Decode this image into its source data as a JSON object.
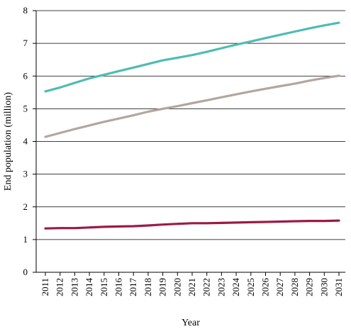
{
  "chart_data": {
    "type": "line",
    "title": "",
    "xlabel": "Year",
    "ylabel": "End population (million)",
    "ylim": [
      0,
      8
    ],
    "yticks": [
      0,
      1,
      2,
      3,
      4,
      5,
      6,
      7,
      8
    ],
    "grid": "horizontal",
    "legend": "none",
    "categories": [
      "2011",
      "2012",
      "2013",
      "2014",
      "2015",
      "2016",
      "2017",
      "2018",
      "2019",
      "2020",
      "2021",
      "2022",
      "2023",
      "2024",
      "2025",
      "2026",
      "2027",
      "2028",
      "2029",
      "2030",
      "2031"
    ],
    "series": [
      {
        "color": "#4dbdb0",
        "values": [
          5.53,
          5.65,
          5.79,
          5.93,
          6.04,
          6.15,
          6.26,
          6.37,
          6.48,
          6.56,
          6.64,
          6.74,
          6.85,
          6.96,
          7.06,
          7.16,
          7.26,
          7.36,
          7.46,
          7.55,
          7.63
        ]
      },
      {
        "color": "#b3a69e",
        "values": [
          4.14,
          4.26,
          4.38,
          4.49,
          4.6,
          4.7,
          4.8,
          4.91,
          5.0,
          5.08,
          5.17,
          5.26,
          5.35,
          5.44,
          5.53,
          5.61,
          5.69,
          5.77,
          5.86,
          5.94,
          6.01
        ]
      },
      {
        "color": "#9b1b45",
        "values": [
          1.34,
          1.35,
          1.35,
          1.37,
          1.39,
          1.4,
          1.41,
          1.43,
          1.46,
          1.48,
          1.5,
          1.5,
          1.51,
          1.52,
          1.53,
          1.54,
          1.55,
          1.56,
          1.57,
          1.57,
          1.58
        ]
      }
    ]
  }
}
